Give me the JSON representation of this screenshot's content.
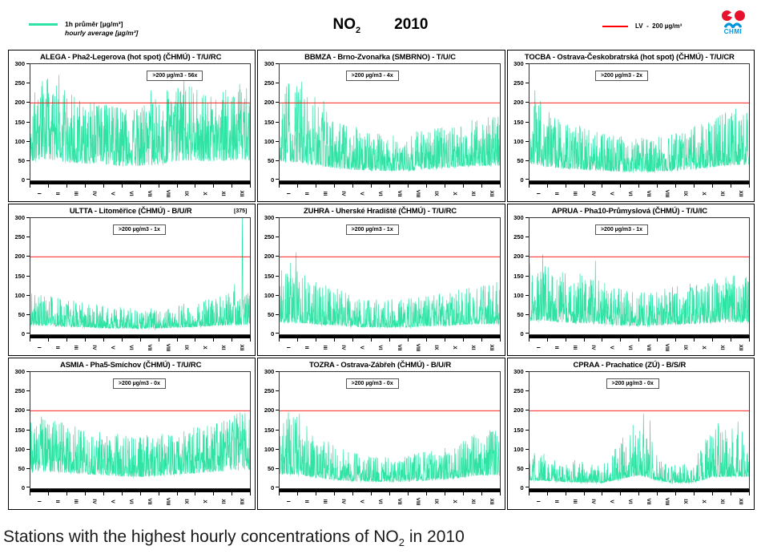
{
  "header": {
    "series_legend": {
      "label_cs": "1h průměr [µg/m³]",
      "label_en": "hourly average [µg/m³]",
      "color": "#2fe3a5"
    },
    "title": {
      "compound": "NO",
      "subscript": "2",
      "year": "2010"
    },
    "lv_legend": {
      "label": "LV  -  200 µg/m³",
      "color": "#ff0000"
    },
    "logo": {
      "text": "CHMI",
      "red": "#e8112d",
      "blue": "#0094d8"
    }
  },
  "caption": {
    "prefix": "Stations with the highest hourly concentrations of NO",
    "subscript": "2",
    "suffix": " in 2010"
  },
  "chart_data": {
    "type": "line",
    "description": "Hourly NO2 concentrations during 2010 at nine Czech monitoring stations; teal trace = 1h average, red horizontal line = limit value LV 200 µg/m³",
    "ylim": [
      0,
      300
    ],
    "yticks": [
      0,
      50,
      100,
      150,
      200,
      250,
      300
    ],
    "lv_value": 200,
    "lv_color": "#ff0000",
    "series_color": "#2fe3a5",
    "x_months": [
      "I",
      "II",
      "III",
      "IV",
      "V",
      "VI",
      "VII",
      "VIII",
      "IX",
      "X",
      "XI",
      "XII"
    ],
    "grid": false,
    "stations": [
      {
        "id": "ALEGA",
        "title": "ALEGA - Pha2-Legerova (hot spot) (ČHMÚ) - T/U/RC",
        "exceedance_label": ">200 µg/m3 - 56x",
        "exceedances": 56,
        "annotation_x": 0.53,
        "seed": 101,
        "spikiness": 1.9,
        "peak_prob": 0.04,
        "monthly_low": [
          25,
          25,
          22,
          20,
          18,
          15,
          15,
          18,
          22,
          25,
          25,
          25
        ],
        "monthly_high": [
          240,
          270,
          230,
          215,
          205,
          195,
          200,
          215,
          255,
          240,
          225,
          250
        ],
        "spikes": [
          {
            "x": 0.13,
            "v": 272
          },
          {
            "x": 0.55,
            "v": 232
          },
          {
            "x": 0.7,
            "v": 258
          }
        ]
      },
      {
        "id": "BBMZA",
        "title": "BBMZA - Brno-Zvonařka (SMBRNO) - T/U/C",
        "exceedance_label": ">200 µg/m3 - 4x",
        "exceedances": 4,
        "annotation_x": 0.3,
        "seed": 202,
        "spikiness": 2.4,
        "peak_prob": 0.035,
        "monthly_low": [
          20,
          20,
          18,
          15,
          12,
          12,
          12,
          12,
          15,
          18,
          20,
          20
        ],
        "monthly_high": [
          255,
          245,
          200,
          160,
          140,
          125,
          115,
          125,
          130,
          140,
          150,
          170
        ],
        "spikes": [
          {
            "x": 0.04,
            "v": 250
          },
          {
            "x": 0.1,
            "v": 255
          },
          {
            "x": 0.16,
            "v": 215
          },
          {
            "x": 0.2,
            "v": 205
          }
        ]
      },
      {
        "id": "TOCBA",
        "title": "TOCBA - Ostrava-Českobratrská (hot spot) (ČHMÚ) - T/U/CR",
        "exceedance_label": ">200 µg/m3 - 2x",
        "exceedances": 2,
        "annotation_x": 0.3,
        "seed": 303,
        "spikiness": 2.6,
        "peak_prob": 0.035,
        "monthly_low": [
          18,
          15,
          15,
          12,
          12,
          10,
          10,
          10,
          12,
          15,
          18,
          20
        ],
        "monthly_high": [
          230,
          180,
          150,
          140,
          125,
          115,
          110,
          115,
          125,
          140,
          155,
          190
        ],
        "spikes": [
          {
            "x": 0.025,
            "v": 232
          },
          {
            "x": 0.05,
            "v": 205
          }
        ]
      },
      {
        "id": "ULTTA",
        "title": "ULTTA - Litoměřice (ČHMÚ) - B/U/R",
        "exceedance_label": ">200 µg/m3 - 1x",
        "exceedances": 1,
        "annotation_x": 0.375,
        "peak_label": "[375]",
        "peak_value": 375,
        "peak_x": 0.965,
        "seed": 404,
        "spikiness": 3.2,
        "peak_prob": 0.03,
        "monthly_low": [
          12,
          12,
          10,
          10,
          8,
          8,
          8,
          8,
          10,
          10,
          12,
          12
        ],
        "monthly_high": [
          110,
          100,
          90,
          85,
          75,
          70,
          65,
          70,
          75,
          85,
          95,
          115
        ],
        "spikes": [
          {
            "x": 0.93,
            "v": 130
          },
          {
            "x": 0.965,
            "v": 375
          }
        ]
      },
      {
        "id": "ZUHRA",
        "title": "ZUHRA - Uherské Hradiště (ČHMÚ) - T/U/RC",
        "exceedance_label": ">200 µg/m3 - 1x",
        "exceedances": 1,
        "annotation_x": 0.3,
        "seed": 505,
        "spikiness": 3.0,
        "peak_prob": 0.03,
        "monthly_low": [
          12,
          12,
          10,
          10,
          8,
          8,
          8,
          8,
          10,
          10,
          12,
          12
        ],
        "monthly_high": [
          170,
          165,
          140,
          120,
          105,
          95,
          90,
          95,
          100,
          110,
          120,
          135
        ],
        "spikes": [
          {
            "x": 0.05,
            "v": 185
          },
          {
            "x": 0.075,
            "v": 212
          }
        ]
      },
      {
        "id": "APRUA",
        "title": "APRUA - Pha10-Průmyslová (ČHMÚ) - T/U/IC",
        "exceedance_label": ">200 µg/m3 - 1x",
        "exceedances": 1,
        "annotation_x": 0.3,
        "seed": 606,
        "spikiness": 2.6,
        "peak_prob": 0.035,
        "monthly_low": [
          15,
          15,
          12,
          12,
          10,
          10,
          10,
          10,
          12,
          12,
          15,
          15
        ],
        "monthly_high": [
          185,
          175,
          165,
          155,
          140,
          120,
          110,
          115,
          125,
          135,
          145,
          155
        ],
        "spikes": [
          {
            "x": 0.06,
            "v": 206
          },
          {
            "x": 0.3,
            "v": 190
          }
        ]
      },
      {
        "id": "ASMIA",
        "title": "ASMIA - Pha5-Smíchov (ČHMÚ) - T/U/RC",
        "exceedance_label": ">200 µg/m3 - 0x",
        "exceedances": 0,
        "annotation_x": 0.375,
        "seed": 707,
        "spikiness": 2.1,
        "peak_prob": 0.04,
        "monthly_low": [
          25,
          25,
          22,
          20,
          18,
          15,
          15,
          18,
          20,
          22,
          25,
          25
        ],
        "monthly_high": [
          170,
          185,
          170,
          160,
          150,
          140,
          135,
          140,
          150,
          160,
          170,
          195
        ],
        "spikes": [
          {
            "x": 0.05,
            "v": 185
          },
          {
            "x": 0.955,
            "v": 196
          }
        ]
      },
      {
        "id": "TOZRA",
        "title": "TOZRA - Ostrava-Zábřeh (ČHMÚ) - B/U/R",
        "exceedance_label": ">200 µg/m3 - 0x",
        "exceedances": 0,
        "annotation_x": 0.3,
        "seed": 808,
        "spikiness": 2.6,
        "peak_prob": 0.035,
        "monthly_low": [
          15,
          15,
          12,
          10,
          8,
          8,
          8,
          8,
          10,
          12,
          15,
          18
        ],
        "monthly_high": [
          195,
          185,
          140,
          110,
          95,
          85,
          80,
          85,
          95,
          105,
          125,
          150
        ],
        "spikes": [
          {
            "x": 0.04,
            "v": 196
          },
          {
            "x": 0.09,
            "v": 192
          }
        ]
      },
      {
        "id": "CPRAA",
        "title": "CPRAA - Prachatice (ZÚ) - B/S/R",
        "exceedance_label": ">200 µg/m3 - 0x",
        "exceedances": 0,
        "annotation_x": 0.35,
        "seed": 909,
        "spikiness": 4.2,
        "peak_prob": 0.02,
        "monthly_low": [
          10,
          10,
          8,
          8,
          8,
          10,
          12,
          10,
          8,
          8,
          10,
          12
        ],
        "monthly_high": [
          100,
          90,
          80,
          70,
          60,
          130,
          195,
          95,
          60,
          70,
          170,
          165
        ],
        "spikes": [
          {
            "x": 0.52,
            "v": 192
          },
          {
            "x": 0.55,
            "v": 175
          },
          {
            "x": 0.86,
            "v": 168
          },
          {
            "x": 0.95,
            "v": 172
          }
        ]
      }
    ]
  }
}
